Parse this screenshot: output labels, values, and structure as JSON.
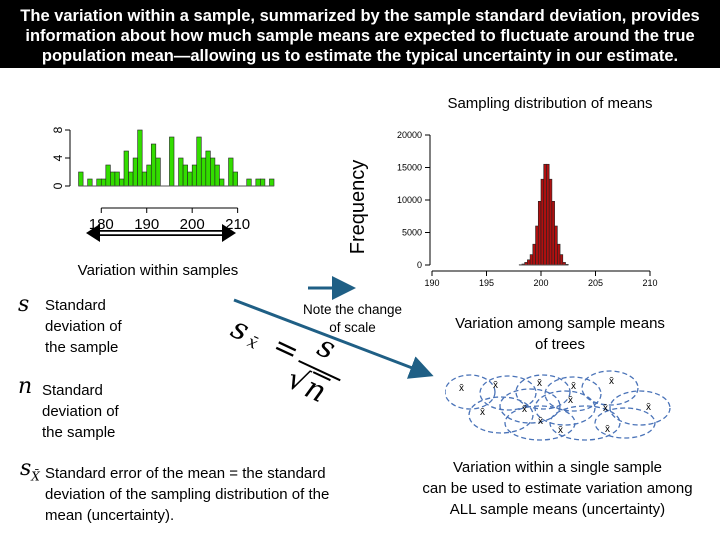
{
  "title": "The variation within a sample, summarized by the sample standard deviation, provides information about how much sample means are expected to fluctuate around the true population mean—allowing us to estimate the typical uncertainty in our estimate.",
  "labels": {
    "within_samples": "Variation within samples",
    "note_scale_1": "Note the change",
    "note_scale_2": "of scale",
    "among_means_1": "Variation among sample means",
    "among_means_2": "of trees",
    "bottom_1": "Variation within a single sample",
    "bottom_2": "can be used to estimate variation among",
    "bottom_3": "ALL sample means (uncertainty)",
    "xbar": "x̄"
  },
  "definitions": [
    {
      "symbol": "s",
      "lines": [
        "Standard",
        "deviation of",
        "the sample"
      ]
    },
    {
      "symbol": "n",
      "lines": [
        "Standard",
        "deviation of",
        "the sample"
      ]
    },
    {
      "symbol": "s",
      "subscript": "X̄",
      "lines": [
        "Standard error of the mean = the standard",
        "deviation of the sampling distribution of the",
        "mean (uncertainty)."
      ]
    }
  ],
  "formula": {
    "lhs": "s",
    "lhs_sub": "x̄",
    "eq": "=",
    "num": "s",
    "den": "n"
  },
  "colors": {
    "green_bar": "#33dd00",
    "red_bar": "#b01010",
    "arrow": "#1f5f85",
    "ellipse": "#4a73b8"
  },
  "chart_data": [
    {
      "type": "bar",
      "title": "",
      "xlabel": "",
      "ylabel": "",
      "bin_width": 1,
      "x": [
        175,
        176,
        177,
        178,
        179,
        180,
        181,
        182,
        183,
        184,
        185,
        186,
        187,
        188,
        189,
        190,
        191,
        192,
        193,
        194,
        195,
        196,
        197,
        198,
        199,
        200,
        201,
        202,
        203,
        204,
        205,
        206,
        207,
        208,
        209,
        210,
        211,
        212,
        213,
        214,
        215,
        216,
        217
      ],
      "values": [
        2,
        0,
        1,
        0,
        1,
        1,
        3,
        2,
        2,
        1,
        5,
        2,
        4,
        8,
        2,
        3,
        6,
        4,
        0,
        0,
        7,
        0,
        4,
        3,
        2,
        3,
        7,
        4,
        5,
        4,
        3,
        1,
        0,
        4,
        2,
        0,
        0,
        1,
        0,
        1,
        1,
        0,
        1
      ],
      "xticks": [
        180,
        190,
        200,
        210
      ],
      "yticks": [
        0,
        4,
        8
      ],
      "xlim": [
        174,
        218
      ],
      "ylim": [
        0,
        8
      ],
      "bar_color": "#33dd00"
    },
    {
      "type": "bar",
      "title": "Sampling distribution of means",
      "xlabel": "",
      "ylabel": "Frequency",
      "bin_width": 0.25,
      "x": [
        198,
        198.25,
        198.5,
        198.75,
        199,
        199.25,
        199.5,
        199.75,
        200,
        200.25,
        200.5,
        200.75,
        201,
        201.25,
        201.5,
        201.75,
        202,
        202.25
      ],
      "values": [
        50,
        150,
        400,
        800,
        1600,
        3200,
        6000,
        9800,
        13200,
        15500,
        15500,
        13200,
        9800,
        6000,
        3200,
        1600,
        400,
        100
      ],
      "xticks": [
        190,
        195,
        200,
        205,
        210
      ],
      "yticks": [
        0,
        5000,
        10000,
        15000,
        20000
      ],
      "xlim": [
        190,
        210
      ],
      "ylim": [
        0,
        20000
      ],
      "bar_color": "#b01010"
    }
  ]
}
